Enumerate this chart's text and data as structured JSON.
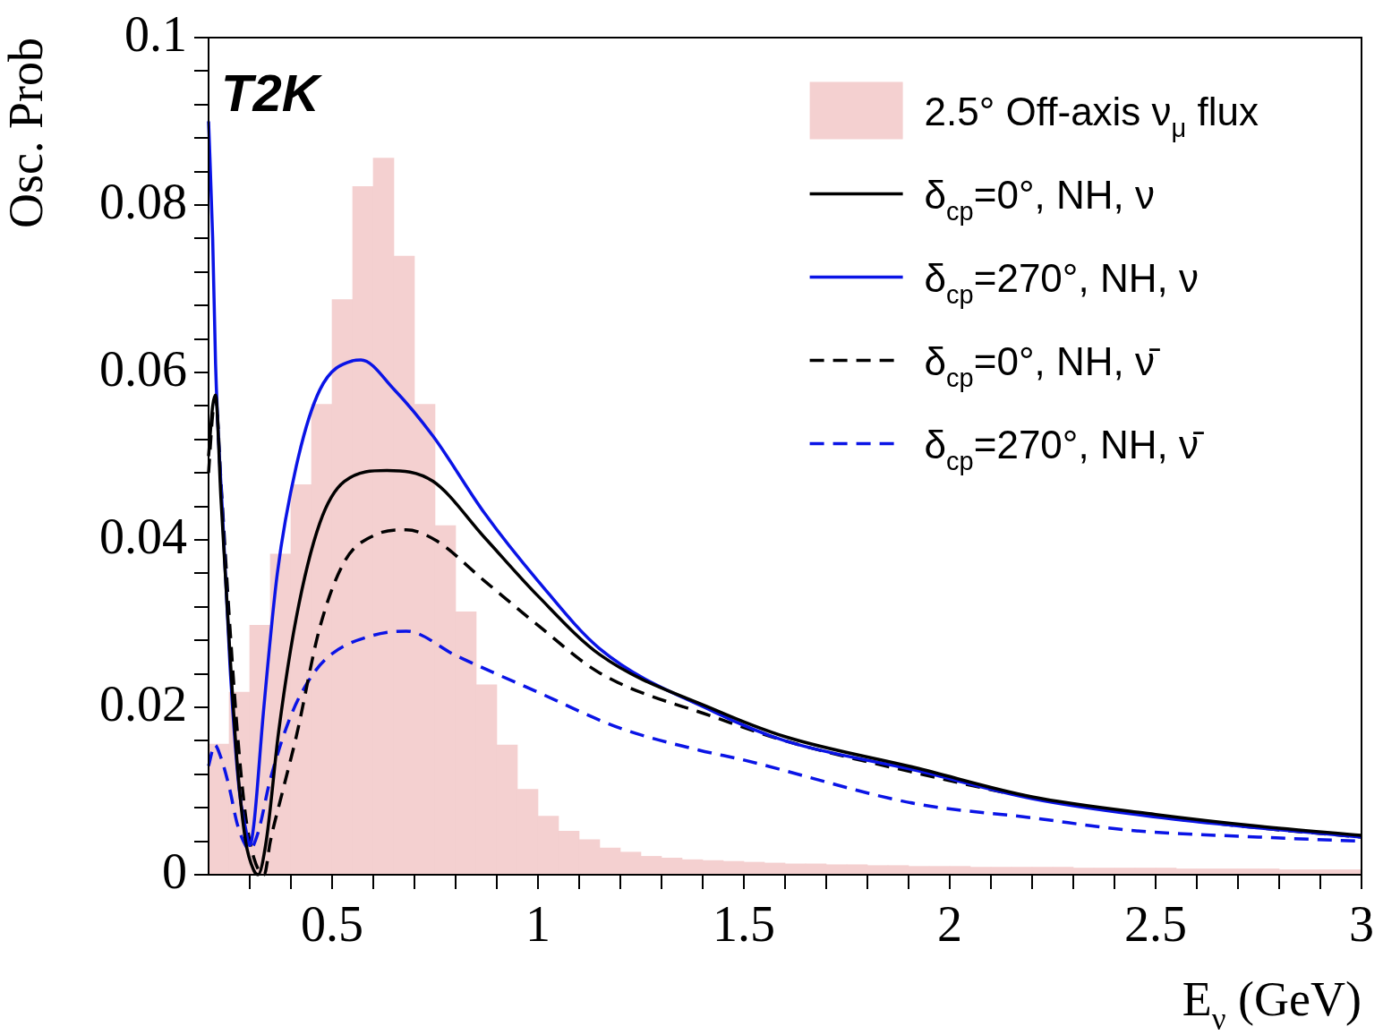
{
  "chart_data": {
    "type": "line",
    "ylabel": "Osc. Prob",
    "xlabel": "E$_{ν}$ (GeV)",
    "annotations": [
      "T2K"
    ],
    "legend": "top right",
    "marker": "none",
    "grid": false,
    "xlim": [
      0.2,
      3
    ],
    "ylim": [
      0,
      0.1
    ],
    "xticks": [
      {
        "value": 0.3,
        "label": null
      },
      {
        "value": 0.4,
        "label": null
      },
      0.5,
      {
        "value": 0.6,
        "label": null
      },
      {
        "value": 0.7,
        "label": null
      },
      {
        "value": 0.8,
        "label": null
      },
      {
        "value": 0.9,
        "label": null
      },
      1,
      {
        "value": 1.1,
        "label": null
      },
      {
        "value": 1.2,
        "label": null
      },
      {
        "value": 1.3,
        "label": null
      },
      {
        "value": 1.4,
        "label": null
      },
      1.5,
      {
        "value": 1.6,
        "label": null
      },
      {
        "value": 1.7,
        "label": null
      },
      {
        "value": 1.8,
        "label": null
      },
      {
        "value": 1.9,
        "label": null
      },
      2,
      {
        "value": 2.1,
        "label": null
      },
      {
        "value": 2.2,
        "label": null
      },
      {
        "value": 2.3,
        "label": null
      },
      {
        "value": 2.4,
        "label": null
      },
      2.5,
      {
        "value": 2.6,
        "label": null
      },
      {
        "value": 2.7,
        "label": null
      },
      {
        "value": 2.8,
        "label": null
      },
      {
        "value": 2.9,
        "label": null
      },
      3
    ],
    "yticks": [
      0,
      {
        "value": 0.004,
        "label": null
      },
      {
        "value": 0.008,
        "label": null
      },
      {
        "value": 0.012,
        "label": null
      },
      {
        "value": 0.016,
        "label": null
      },
      0.02,
      {
        "value": 0.024,
        "label": null
      },
      {
        "value": 0.028,
        "label": null
      },
      {
        "value": 0.032,
        "label": null
      },
      {
        "value": 0.036,
        "label": null
      },
      0.04,
      {
        "value": 0.044,
        "label": null
      },
      {
        "value": 0.048,
        "label": null
      },
      {
        "value": 0.052,
        "label": null
      },
      {
        "value": 0.056,
        "label": null
      },
      0.06,
      {
        "value": 0.064,
        "label": null
      },
      {
        "value": 0.068,
        "label": null
      },
      {
        "value": 0.072,
        "label": null
      },
      {
        "value": 0.076,
        "label": null
      },
      0.08,
      {
        "value": 0.084,
        "label": null
      },
      {
        "value": 0.088,
        "label": null
      },
      {
        "value": 0.092,
        "label": null
      },
      {
        "value": 0.096,
        "label": null
      },
      0.1
    ],
    "series": [
      {
        "type": "histogram",
        "name": "2.5° Off-axis ν$_{μ}$ flux",
        "color": "#f4d0d0",
        "bins": [
          0.2,
          0.25,
          0.3,
          0.35,
          0.4,
          0.45,
          0.5,
          0.55,
          0.6,
          0.65,
          0.7,
          0.75,
          0.8,
          0.85,
          0.9,
          0.95,
          1.0,
          1.05,
          1.1,
          1.15,
          1.2,
          1.25,
          1.3,
          1.35,
          1.4,
          1.45,
          1.5,
          1.55,
          1.6,
          1.65,
          1.7,
          1.75,
          1.8,
          1.85,
          1.9,
          1.95,
          2.0,
          2.05,
          2.1,
          2.15,
          2.2,
          2.25,
          2.3,
          2.35,
          2.4,
          2.45,
          2.5,
          2.55,
          2.6,
          2.65,
          2.7,
          2.75,
          2.8,
          2.85,
          2.9,
          2.95,
          3.0
        ],
        "values": [
          0.0156,
          0.0218,
          0.0298,
          0.0383,
          0.0466,
          0.0562,
          0.0687,
          0.0822,
          0.0856,
          0.0739,
          0.0562,
          0.0417,
          0.0314,
          0.0227,
          0.0155,
          0.0102,
          0.007,
          0.0052,
          0.0042,
          0.0032,
          0.0027,
          0.0022,
          0.002,
          0.0018,
          0.0017,
          0.0016,
          0.0015,
          0.0014,
          0.0013,
          0.0013,
          0.0012,
          0.0012,
          0.0011,
          0.0011,
          0.001,
          0.001,
          0.001,
          0.0009,
          0.0009,
          0.0009,
          0.0009,
          0.0009,
          0.0008,
          0.0008,
          0.0008,
          0.0008,
          0.0008,
          0.0007,
          0.0007,
          0.0007,
          0.0007,
          0.0007,
          0.0006,
          0.0006,
          0.0006,
          0.0006
        ]
      },
      {
        "name": "δ$_{cp}$=0°, NH, ν",
        "color": "#000000",
        "line_style": "solid",
        "x": [
          0.2,
          0.21,
          0.217,
          0.23,
          0.25,
          0.27,
          0.29,
          0.31,
          0.32,
          0.34,
          0.37,
          0.413,
          0.47,
          0.53,
          0.633,
          0.745,
          0.87,
          1.0,
          1.15,
          1.43,
          1.6,
          1.915,
          2.2,
          2.5,
          2.75,
          3.0
        ],
        "values": [
          0.05,
          0.056,
          0.0573,
          0.045,
          0.028,
          0.013,
          0.004,
          0.0005,
          0,
          0.004,
          0.017,
          0.0307,
          0.042,
          0.047,
          0.0483,
          0.047,
          0.0403,
          0.0333,
          0.0263,
          0.0197,
          0.0165,
          0.0128,
          0.0093,
          0.0072,
          0.0058,
          0.0047
        ]
      },
      {
        "name": "δ$_{cp}$=270°, NH, ν",
        "color": "#0a14e6",
        "line_style": "solid",
        "x": [
          0.2,
          0.21,
          0.217,
          0.235,
          0.252,
          0.274,
          0.29,
          0.3,
          0.31,
          0.333,
          0.367,
          0.413,
          0.47,
          0.55,
          0.57,
          0.65,
          0.745,
          0.87,
          1.0,
          1.15,
          1.43,
          1.6,
          1.915,
          2.2,
          2.5,
          2.75,
          3.0
        ],
        "values": [
          0.09,
          0.076,
          0.061,
          0.042,
          0.025,
          0.0103,
          0.0055,
          0.0035,
          0.006,
          0.0193,
          0.036,
          0.0488,
          0.0579,
          0.0614,
          0.0615,
          0.058,
          0.0524,
          0.0432,
          0.0351,
          0.027,
          0.0194,
          0.016,
          0.0125,
          0.0091,
          0.0069,
          0.0056,
          0.0045
        ]
      },
      {
        "name": "δ$_{cp}$=0°, NH, ν̄",
        "color": "#000000",
        "line_style": "dashed",
        "x": [
          0.2,
          0.21,
          0.217,
          0.23,
          0.25,
          0.27,
          0.29,
          0.31,
          0.335,
          0.35,
          0.38,
          0.413,
          0.47,
          0.53,
          0.6,
          0.68,
          0.75,
          0.87,
          1.0,
          1.15,
          1.43,
          1.6,
          1.915,
          2.2,
          2.5,
          2.75,
          3.0
        ],
        "values": [
          0.048,
          0.055,
          0.057,
          0.047,
          0.031,
          0.017,
          0.007,
          0.002,
          0,
          0.004,
          0.01,
          0.0165,
          0.0295,
          0.0374,
          0.0405,
          0.0412,
          0.04,
          0.0351,
          0.0298,
          0.0241,
          0.0188,
          0.016,
          0.0122,
          0.0092,
          0.007,
          0.0056,
          0.0045
        ]
      },
      {
        "name": "δ$_{cp}$=270°, NH, ν̄",
        "color": "#0a14e6",
        "line_style": "dashed",
        "x": [
          0.2,
          0.215,
          0.23,
          0.25,
          0.27,
          0.29,
          0.3,
          0.32,
          0.35,
          0.4,
          0.45,
          0.5,
          0.6,
          0.68,
          0.8,
          1.0,
          1.2,
          1.39,
          1.5,
          1.915,
          2.2,
          2.44,
          2.75,
          3.0
        ],
        "values": [
          0.013,
          0.0155,
          0.014,
          0.0105,
          0.006,
          0.0035,
          0.003,
          0.005,
          0.0114,
          0.019,
          0.0237,
          0.0264,
          0.0286,
          0.0291,
          0.0262,
          0.0218,
          0.0175,
          0.0149,
          0.0137,
          0.0085,
          0.0068,
          0.0053,
          0.0045,
          0.004
        ]
      }
    ]
  }
}
